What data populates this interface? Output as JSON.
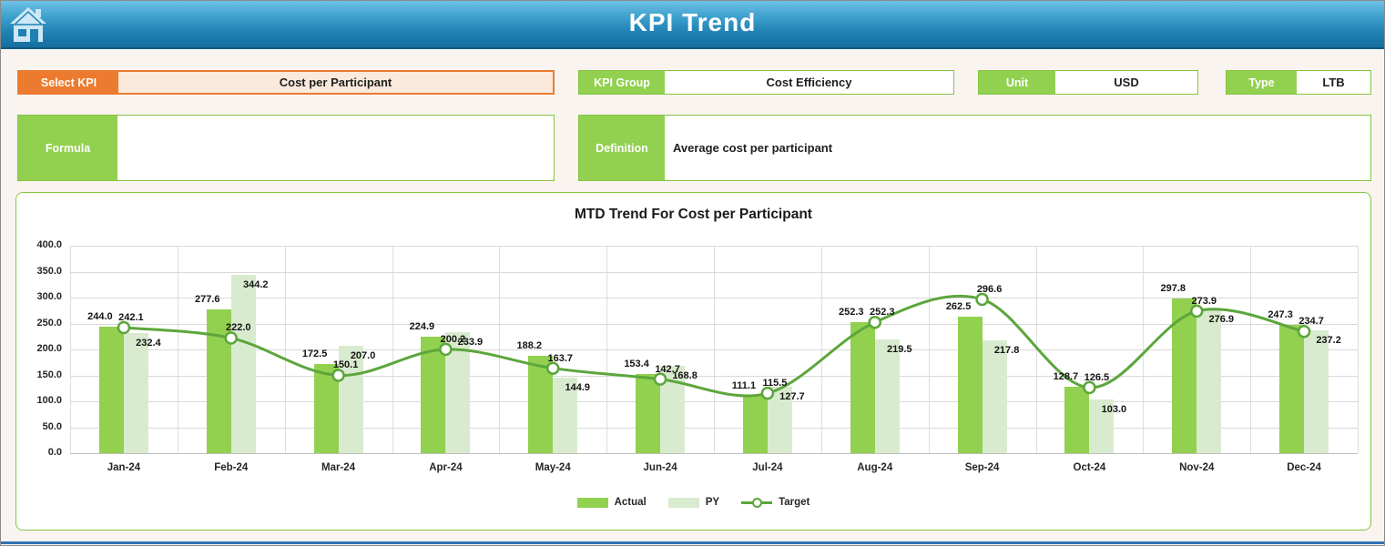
{
  "header": {
    "title": "KPI Trend",
    "home_icon": "home-icon"
  },
  "filters": {
    "select_kpi": {
      "label": "Select KPI",
      "value": "Cost per Participant"
    },
    "kpi_group": {
      "label": "KPI Group",
      "value": "Cost Efficiency"
    },
    "unit": {
      "label": "Unit",
      "value": "USD"
    },
    "type": {
      "label": "Type",
      "value": "LTB"
    },
    "formula": {
      "label": "Formula",
      "value": ""
    },
    "definition": {
      "label": "Definition",
      "value": "Average cost per participant"
    }
  },
  "colors": {
    "accent_orange": "#ED7B2F",
    "accent_green": "#92D050",
    "py_green": "#D9EBCF",
    "target_line": "#5CA63C",
    "header_blue": "#1E80B2"
  },
  "chart_data": {
    "type": "bar",
    "title": "MTD Trend For Cost per Participant",
    "categories": [
      "Jan-24",
      "Feb-24",
      "Mar-24",
      "Apr-24",
      "May-24",
      "Jun-24",
      "Jul-24",
      "Aug-24",
      "Sep-24",
      "Oct-24",
      "Nov-24",
      "Dec-24"
    ],
    "series": [
      {
        "name": "Actual",
        "type": "bar",
        "color": "#92D050",
        "values": [
          244.0,
          277.6,
          172.5,
          224.9,
          188.2,
          153.4,
          111.1,
          252.3,
          262.5,
          128.7,
          297.8,
          247.3
        ]
      },
      {
        "name": "PY",
        "type": "bar",
        "color": "#D9EBCF",
        "values": [
          232.4,
          344.2,
          207.0,
          233.9,
          144.9,
          168.8,
          127.7,
          219.5,
          217.8,
          103.0,
          276.9,
          237.2
        ]
      },
      {
        "name": "Target",
        "type": "line",
        "color": "#5CA63C",
        "values": [
          242.1,
          222.0,
          150.1,
          200.2,
          163.7,
          142.7,
          115.5,
          252.3,
          296.6,
          126.5,
          273.9,
          234.7
        ]
      }
    ],
    "xlabel": "",
    "ylabel": "",
    "ylim": [
      0,
      400
    ],
    "ytick_step": 50,
    "grid": true,
    "legend_position": "bottom"
  }
}
